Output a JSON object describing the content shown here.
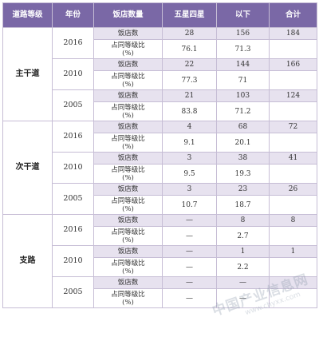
{
  "header": [
    "道路等级",
    "年份",
    "饭店数量",
    "五星四星",
    "以下",
    "合计"
  ],
  "row_labels": {
    "count": "饭店数",
    "share_line1": "占同等级比",
    "share_line2": "(%)"
  },
  "groups": [
    {
      "road": "主干道",
      "years": [
        {
          "year": "2016",
          "count": [
            "28",
            "156",
            "184"
          ],
          "share": [
            "76.1",
            "71.3",
            ""
          ]
        },
        {
          "year": "2010",
          "count": [
            "22",
            "144",
            "166"
          ],
          "share": [
            "77.3",
            "71",
            ""
          ]
        },
        {
          "year": "2005",
          "count": [
            "21",
            "103",
            "124"
          ],
          "share": [
            "83.8",
            "71.2",
            ""
          ]
        }
      ]
    },
    {
      "road": "次干道",
      "years": [
        {
          "year": "2016",
          "count": [
            "4",
            "68",
            "72"
          ],
          "share": [
            "9.1",
            "20.1",
            ""
          ]
        },
        {
          "year": "2010",
          "count": [
            "3",
            "38",
            "41"
          ],
          "share": [
            "9.5",
            "19.3",
            ""
          ]
        },
        {
          "year": "2005",
          "count": [
            "3",
            "23",
            "26"
          ],
          "share": [
            "10.7",
            "18.7",
            ""
          ]
        }
      ]
    },
    {
      "road": "支路",
      "years": [
        {
          "year": "2016",
          "count": [
            "—",
            "8",
            "8"
          ],
          "share": [
            "—",
            "2.7",
            ""
          ]
        },
        {
          "year": "2010",
          "count": [
            "—",
            "1",
            "1"
          ],
          "share": [
            "—",
            "2.2",
            ""
          ]
        },
        {
          "year": "2005",
          "count": [
            "—",
            "—",
            ""
          ],
          "share": [
            "—",
            "—",
            ""
          ]
        }
      ]
    }
  ],
  "watermark": {
    "text": "中国产业信息网",
    "url": "www.chyxx.com"
  }
}
